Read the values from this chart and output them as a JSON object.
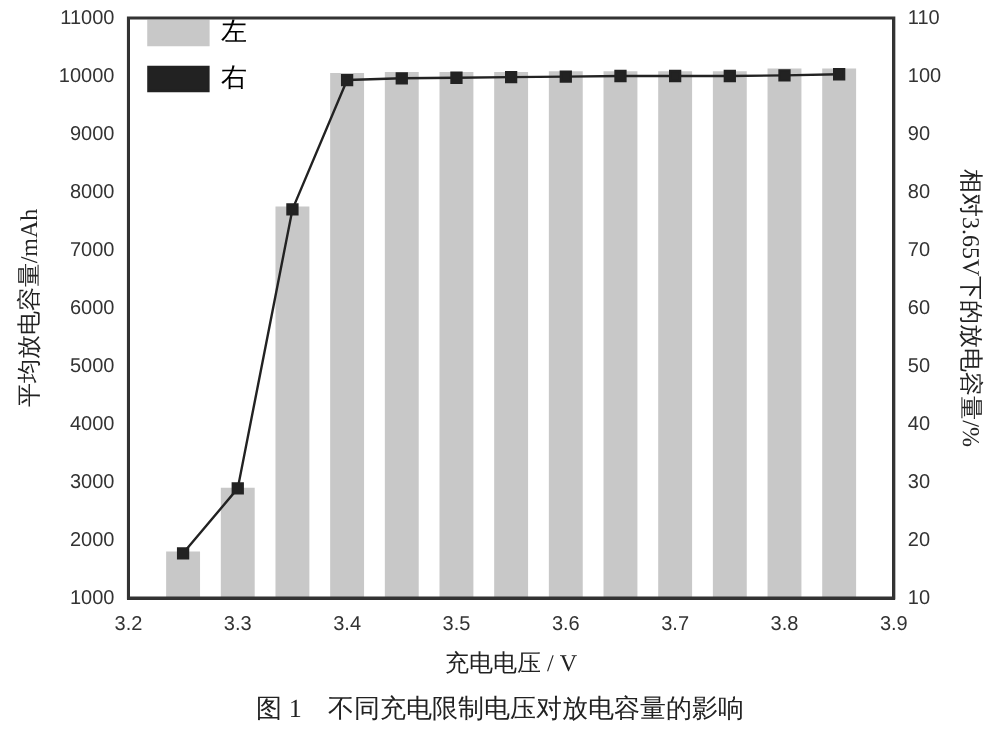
{
  "chart_data": {
    "type": "bar",
    "title": "图 1　不同充电限制电压对放电容量的影响",
    "xlabel": "充电电压 / V",
    "ylabel": "平均放电容量/mAh",
    "y2label": "相对3.65V下的放电容量/%",
    "x": [
      3.25,
      3.3,
      3.35,
      3.4,
      3.45,
      3.5,
      3.55,
      3.6,
      3.65,
      3.7,
      3.75,
      3.8,
      3.85
    ],
    "series": [
      {
        "name": "左",
        "color": "#c8c8c8",
        "values": [
          1800,
          2900,
          7750,
          10050,
          10070,
          10070,
          10070,
          10080,
          10080,
          10080,
          10080,
          10130,
          10130
        ]
      },
      {
        "name": "右",
        "type": "line",
        "axis": "y2",
        "color": "#222222",
        "marker": "square",
        "values": [
          17.7,
          28.9,
          77,
          99.3,
          99.6,
          99.7,
          99.8,
          99.9,
          100,
          100,
          100,
          100.1,
          100.3
        ]
      }
    ],
    "xlim": [
      3.2,
      3.9
    ],
    "xticks": [
      3.2,
      3.3,
      3.4,
      3.5,
      3.6,
      3.7,
      3.8,
      3.9
    ],
    "ylim": [
      1000,
      11000
    ],
    "yticks": [
      1000,
      2000,
      3000,
      4000,
      5000,
      6000,
      7000,
      8000,
      9000,
      10000,
      11000
    ],
    "y2lim": [
      10,
      110
    ],
    "y2ticks": [
      10,
      20,
      30,
      40,
      50,
      60,
      70,
      80,
      90,
      100,
      110
    ],
    "grid": false,
    "legend": "top left"
  }
}
